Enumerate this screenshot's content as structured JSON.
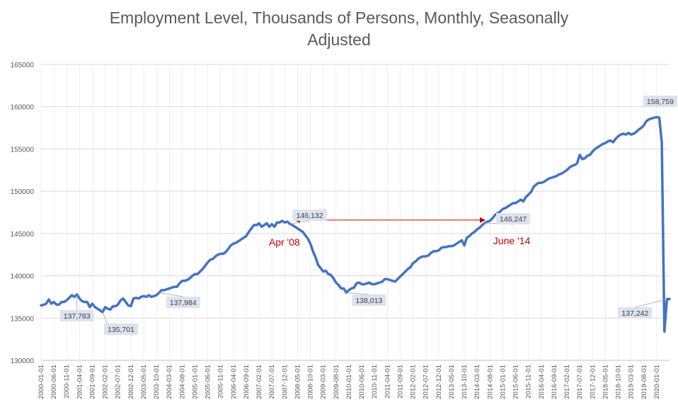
{
  "title_line1": "Employment Level, Thousands of Persons, Monthly, Seasonally",
  "title_line2": "Adjusted",
  "colors": {
    "series": "#4472C4",
    "annotation": "#C00000",
    "grid": "#D9D9D9",
    "label_box": "#DCE3EE",
    "axis_text": "#595959"
  },
  "chart_data": {
    "type": "line",
    "title": "Employment Level, Thousands of Persons, Monthly, Seasonally Adjusted",
    "xlabel": "",
    "ylabel": "",
    "ylim": [
      130000,
      165000
    ],
    "y_ticks": [
      130000,
      135000,
      140000,
      145000,
      150000,
      155000,
      160000,
      165000
    ],
    "x_range": [
      "2000-01",
      "2020-06"
    ],
    "x_tick_labels": [
      "2000-01-01",
      "2000-06-01",
      "2000-11-01",
      "2001-04-01",
      "2001-09-01",
      "2002-02-01",
      "2002-07-01",
      "2002-12-01",
      "2003-05-01",
      "2003-10-01",
      "2004-03-01",
      "2004-08-01",
      "2005-01-01",
      "2005-06-01",
      "2005-11-01",
      "2006-04-01",
      "2006-09-01",
      "2007-02-01",
      "2007-07-01",
      "2007-12-01",
      "2008-05-01",
      "2008-10-01",
      "2009-03-01",
      "2009-08-01",
      "2010-01-01",
      "2010-06-01",
      "2010-11-01",
      "2011-04-01",
      "2011-09-01",
      "2012-02-01",
      "2012-07-01",
      "2012-12-01",
      "2013-05-01",
      "2013-10-01",
      "2014-03-01",
      "2014-08-01",
      "2015-01-01",
      "2015-06-01",
      "2015-11-01",
      "2016-04-01",
      "2016-09-01",
      "2017-02-01",
      "2017-07-01",
      "2017-12-01",
      "2018-05-01",
      "2018-10-01",
      "2019-03-01",
      "2019-08-01",
      "2020-01-01"
    ],
    "grid": true,
    "series": [
      {
        "name": "Employment Level",
        "points": [
          [
            "2000-01",
            136500
          ],
          [
            "2000-02",
            136560
          ],
          [
            "2000-03",
            136700
          ],
          [
            "2000-04",
            137200
          ],
          [
            "2000-05",
            136700
          ],
          [
            "2000-06",
            136900
          ],
          [
            "2000-07",
            136600
          ],
          [
            "2000-08",
            136600
          ],
          [
            "2000-09",
            136900
          ],
          [
            "2000-10",
            136900
          ],
          [
            "2000-11",
            137100
          ],
          [
            "2000-12",
            137400
          ],
          [
            "2001-01",
            137700
          ],
          [
            "2001-02",
            137500
          ],
          [
            "2001-03",
            137783
          ],
          [
            "2001-04",
            137300
          ],
          [
            "2001-05",
            137000
          ],
          [
            "2001-06",
            136900
          ],
          [
            "2001-07",
            136900
          ],
          [
            "2001-08",
            136300
          ],
          [
            "2001-09",
            136700
          ],
          [
            "2001-10",
            136300
          ],
          [
            "2001-11",
            136100
          ],
          [
            "2001-12",
            135900
          ],
          [
            "2002-01",
            135701
          ],
          [
            "2002-02",
            136300
          ],
          [
            "2002-03",
            136100
          ],
          [
            "2002-04",
            136000
          ],
          [
            "2002-05",
            136400
          ],
          [
            "2002-06",
            136400
          ],
          [
            "2002-07",
            136600
          ],
          [
            "2002-08",
            137100
          ],
          [
            "2002-09",
            137300
          ],
          [
            "2002-10",
            136900
          ],
          [
            "2002-11",
            136500
          ],
          [
            "2002-12",
            136400
          ],
          [
            "2003-01",
            137300
          ],
          [
            "2003-02",
            137400
          ],
          [
            "2003-03",
            137300
          ],
          [
            "2003-04",
            137500
          ],
          [
            "2003-05",
            137600
          ],
          [
            "2003-06",
            137500
          ],
          [
            "2003-07",
            137700
          ],
          [
            "2003-08",
            137500
          ],
          [
            "2003-09",
            137600
          ],
          [
            "2003-10",
            137700
          ],
          [
            "2003-11",
            137984
          ],
          [
            "2003-12",
            138300
          ],
          [
            "2004-01",
            138300
          ],
          [
            "2004-02",
            138400
          ],
          [
            "2004-03",
            138500
          ],
          [
            "2004-04",
            138600
          ],
          [
            "2004-05",
            138700
          ],
          [
            "2004-06",
            138700
          ],
          [
            "2004-07",
            139100
          ],
          [
            "2004-08",
            139400
          ],
          [
            "2004-09",
            139400
          ],
          [
            "2004-10",
            139500
          ],
          [
            "2004-11",
            139700
          ],
          [
            "2004-12",
            140000
          ],
          [
            "2005-01",
            140200
          ],
          [
            "2005-02",
            140200
          ],
          [
            "2005-03",
            140500
          ],
          [
            "2005-04",
            140800
          ],
          [
            "2005-05",
            141200
          ],
          [
            "2005-06",
            141600
          ],
          [
            "2005-07",
            141900
          ],
          [
            "2005-08",
            142000
          ],
          [
            "2005-09",
            142300
          ],
          [
            "2005-10",
            142500
          ],
          [
            "2005-11",
            142600
          ],
          [
            "2005-12",
            142600
          ],
          [
            "2006-01",
            142800
          ],
          [
            "2006-02",
            143200
          ],
          [
            "2006-03",
            143600
          ],
          [
            "2006-04",
            143800
          ],
          [
            "2006-05",
            143900
          ],
          [
            "2006-06",
            144100
          ],
          [
            "2006-07",
            144300
          ],
          [
            "2006-08",
            144500
          ],
          [
            "2006-09",
            144700
          ],
          [
            "2006-10",
            145200
          ],
          [
            "2006-11",
            145600
          ],
          [
            "2006-12",
            146000
          ],
          [
            "2007-01",
            146000
          ],
          [
            "2007-02",
            146200
          ],
          [
            "2007-03",
            145800
          ],
          [
            "2007-04",
            146000
          ],
          [
            "2007-05",
            146200
          ],
          [
            "2007-06",
            145800
          ],
          [
            "2007-07",
            146100
          ],
          [
            "2007-08",
            145800
          ],
          [
            "2007-09",
            146300
          ],
          [
            "2007-10",
            146300
          ],
          [
            "2007-11",
            146500
          ],
          [
            "2007-12",
            146300
          ],
          [
            "2008-01",
            146400
          ],
          [
            "2008-02",
            146132
          ],
          [
            "2008-03",
            146000
          ],
          [
            "2008-04",
            145800
          ],
          [
            "2008-05",
            145600
          ],
          [
            "2008-06",
            145400
          ],
          [
            "2008-07",
            145200
          ],
          [
            "2008-08",
            144800
          ],
          [
            "2008-09",
            144400
          ],
          [
            "2008-10",
            143800
          ],
          [
            "2008-11",
            142900
          ],
          [
            "2008-12",
            142200
          ],
          [
            "2009-01",
            141300
          ],
          [
            "2009-02",
            140900
          ],
          [
            "2009-03",
            140500
          ],
          [
            "2009-04",
            140600
          ],
          [
            "2009-05",
            140200
          ],
          [
            "2009-06",
            140100
          ],
          [
            "2009-07",
            139700
          ],
          [
            "2009-08",
            139200
          ],
          [
            "2009-09",
            138900
          ],
          [
            "2009-10",
            138500
          ],
          [
            "2009-11",
            138500
          ],
          [
            "2009-12",
            138013
          ],
          [
            "2010-01",
            138300
          ],
          [
            "2010-02",
            138500
          ],
          [
            "2010-03",
            138600
          ],
          [
            "2010-04",
            139100
          ],
          [
            "2010-05",
            139200
          ],
          [
            "2010-06",
            139000
          ],
          [
            "2010-07",
            139000
          ],
          [
            "2010-08",
            139100
          ],
          [
            "2010-09",
            139200
          ],
          [
            "2010-10",
            139000
          ],
          [
            "2010-11",
            139000
          ],
          [
            "2010-12",
            139100
          ],
          [
            "2011-01",
            139200
          ],
          [
            "2011-02",
            139300
          ],
          [
            "2011-03",
            139600
          ],
          [
            "2011-04",
            139600
          ],
          [
            "2011-05",
            139500
          ],
          [
            "2011-06",
            139400
          ],
          [
            "2011-07",
            139300
          ],
          [
            "2011-08",
            139600
          ],
          [
            "2011-09",
            139900
          ],
          [
            "2011-10",
            140200
          ],
          [
            "2011-11",
            140500
          ],
          [
            "2011-12",
            140800
          ],
          [
            "2012-01",
            141000
          ],
          [
            "2012-02",
            141500
          ],
          [
            "2012-03",
            141700
          ],
          [
            "2012-04",
            142000
          ],
          [
            "2012-05",
            142200
          ],
          [
            "2012-06",
            142300
          ],
          [
            "2012-07",
            142300
          ],
          [
            "2012-08",
            142400
          ],
          [
            "2012-09",
            142700
          ],
          [
            "2012-10",
            142900
          ],
          [
            "2012-11",
            142900
          ],
          [
            "2012-12",
            143000
          ],
          [
            "2013-01",
            143300
          ],
          [
            "2013-02",
            143400
          ],
          [
            "2013-03",
            143400
          ],
          [
            "2013-04",
            143500
          ],
          [
            "2013-05",
            143500
          ],
          [
            "2013-06",
            143600
          ],
          [
            "2013-07",
            143800
          ],
          [
            "2013-08",
            144000
          ],
          [
            "2013-09",
            144200
          ],
          [
            "2013-10",
            143600
          ],
          [
            "2013-11",
            144500
          ],
          [
            "2013-12",
            144700
          ],
          [
            "2014-01",
            145000
          ],
          [
            "2014-02",
            145200
          ],
          [
            "2014-03",
            145500
          ],
          [
            "2014-04",
            145700
          ],
          [
            "2014-05",
            146000
          ],
          [
            "2014-06",
            146247
          ],
          [
            "2014-07",
            146400
          ],
          [
            "2014-08",
            146500
          ],
          [
            "2014-09",
            146800
          ],
          [
            "2014-10",
            147200
          ],
          [
            "2014-11",
            147400
          ],
          [
            "2014-12",
            147600
          ],
          [
            "2015-01",
            147900
          ],
          [
            "2015-02",
            148000
          ],
          [
            "2015-03",
            148200
          ],
          [
            "2015-04",
            148400
          ],
          [
            "2015-05",
            148600
          ],
          [
            "2015-06",
            148600
          ],
          [
            "2015-07",
            148800
          ],
          [
            "2015-08",
            149000
          ],
          [
            "2015-09",
            148800
          ],
          [
            "2015-10",
            149300
          ],
          [
            "2015-11",
            149600
          ],
          [
            "2015-12",
            149900
          ],
          [
            "2016-01",
            150500
          ],
          [
            "2016-02",
            150800
          ],
          [
            "2016-03",
            151000
          ],
          [
            "2016-04",
            151000
          ],
          [
            "2016-05",
            151100
          ],
          [
            "2016-06",
            151300
          ],
          [
            "2016-07",
            151500
          ],
          [
            "2016-08",
            151600
          ],
          [
            "2016-09",
            151700
          ],
          [
            "2016-10",
            151800
          ],
          [
            "2016-11",
            152000
          ],
          [
            "2016-12",
            152100
          ],
          [
            "2017-01",
            152300
          ],
          [
            "2017-02",
            152500
          ],
          [
            "2017-03",
            152800
          ],
          [
            "2017-04",
            153000
          ],
          [
            "2017-05",
            153100
          ],
          [
            "2017-06",
            153300
          ],
          [
            "2017-07",
            154300
          ],
          [
            "2017-08",
            153800
          ],
          [
            "2017-09",
            153900
          ],
          [
            "2017-10",
            154200
          ],
          [
            "2017-11",
            154300
          ],
          [
            "2017-12",
            154700
          ],
          [
            "2018-01",
            155000
          ],
          [
            "2018-02",
            155200
          ],
          [
            "2018-03",
            155400
          ],
          [
            "2018-04",
            155600
          ],
          [
            "2018-05",
            155700
          ],
          [
            "2018-06",
            155900
          ],
          [
            "2018-07",
            156000
          ],
          [
            "2018-08",
            155800
          ],
          [
            "2018-09",
            156200
          ],
          [
            "2018-10",
            156500
          ],
          [
            "2018-11",
            156700
          ],
          [
            "2018-12",
            156800
          ],
          [
            "2019-01",
            156700
          ],
          [
            "2019-02",
            156900
          ],
          [
            "2019-03",
            156700
          ],
          [
            "2019-04",
            156800
          ],
          [
            "2019-05",
            157000
          ],
          [
            "2019-06",
            157300
          ],
          [
            "2019-07",
            157500
          ],
          [
            "2019-08",
            157800
          ],
          [
            "2019-09",
            158300
          ],
          [
            "2019-10",
            158500
          ],
          [
            "2019-11",
            158600
          ],
          [
            "2019-12",
            158700
          ],
          [
            "2020-01",
            158759
          ],
          [
            "2020-02",
            158700
          ],
          [
            "2020-03",
            155800
          ],
          [
            "2020-04",
            133400
          ],
          [
            "2020-05",
            137242
          ],
          [
            "2020-06",
            137242
          ]
        ]
      }
    ],
    "data_labels": [
      {
        "x": "2001-03",
        "y": 137783,
        "text": "137,783"
      },
      {
        "x": "2002-01",
        "y": 135701,
        "text": "135,701"
      },
      {
        "x": "2003-11",
        "y": 137984,
        "text": "137,984"
      },
      {
        "x": "2008-02",
        "y": 146132,
        "text": "146,132"
      },
      {
        "x": "2009-12",
        "y": 138013,
        "text": "138,013"
      },
      {
        "x": "2014-06",
        "y": 146247,
        "text": "146,247"
      },
      {
        "x": "2020-01",
        "y": 158759,
        "text": "158,759"
      },
      {
        "x": "2020-05",
        "y": 137242,
        "text": "137,242"
      }
    ],
    "annotations": [
      {
        "text": "Apr '08",
        "x": "2008-04"
      },
      {
        "text": "June '14",
        "x": "2014-06"
      }
    ],
    "arrow": {
      "from": "2008-04",
      "to": "2014-06",
      "y": 146000
    }
  }
}
